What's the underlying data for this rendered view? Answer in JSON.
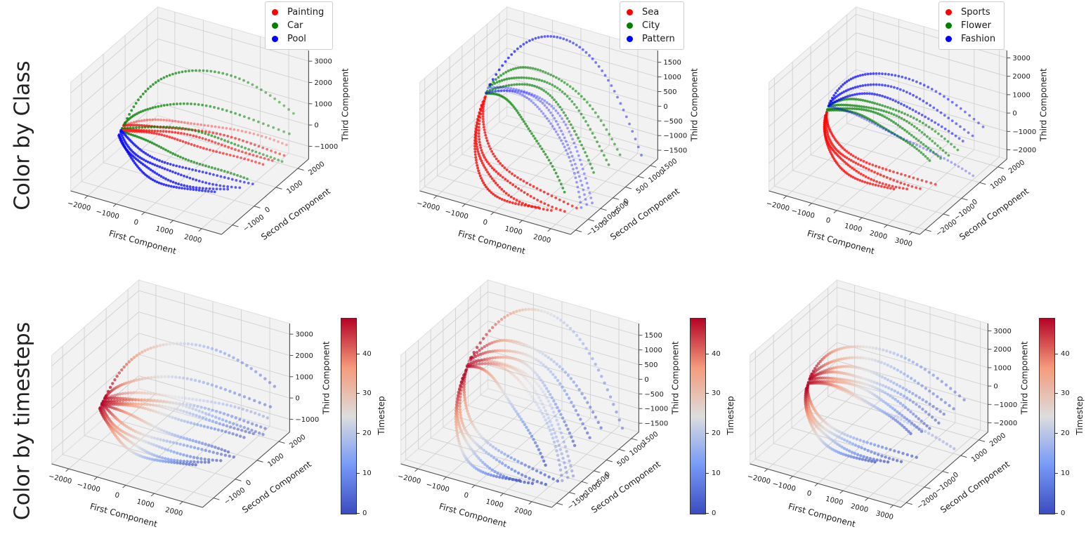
{
  "figure": {
    "rows": [
      {
        "label": "Color by Class"
      },
      {
        "label": "Color by timesteps"
      }
    ],
    "axis_labels": {
      "x": "First Component",
      "y": "Second Component",
      "z": "Third Component"
    }
  },
  "colors": {
    "red": "#ff0000",
    "green": "#008000",
    "blue": "#0000ff",
    "pane": "#f2f2f2",
    "grid": "#cdcdcd",
    "pane_edge": "#dedede",
    "spine": "#4d4d4d",
    "text": "#1a1a1a",
    "coolwarm_stops": [
      "#3b4cc0",
      "#779af7",
      "#dddddd",
      "#f49a7b",
      "#b40426"
    ]
  },
  "chart_data": {
    "type": "scatter",
    "projection": "3d",
    "view": {
      "elev": 30,
      "azim": -60
    },
    "grid": true,
    "points_per_trajectory": 50,
    "row_modes": [
      "class",
      "timestep"
    ],
    "timestep_colorbar": {
      "label": "Timestep",
      "min": 0,
      "max": 49,
      "ticks": [
        0,
        10,
        20,
        30,
        40
      ],
      "colormap": "coolwarm"
    },
    "columns": [
      {
        "classes": [
          {
            "name": "Painting",
            "color": "#ff0000"
          },
          {
            "name": "Car",
            "color": "#008000"
          },
          {
            "name": "Pool",
            "color": "#0000ff"
          }
        ],
        "xlim": [
          -2600,
          2700
        ],
        "ylim": [
          -1500,
          2500
        ],
        "zlim": [
          -1600,
          3500
        ],
        "xticks": [
          -2000,
          -1000,
          0,
          1000,
          2000
        ],
        "yticks": [
          -1000,
          0,
          1000,
          2000
        ],
        "zticks": [
          -1000,
          0,
          1000,
          2000,
          3000
        ],
        "trajectories": [
          {
            "class": 0,
            "start": [
              -2000,
              150,
              250
            ],
            "peak": [
              100,
              600,
              800
            ],
            "end": [
              2600,
              1600,
              -200
            ],
            "alpha": 0.6
          },
          {
            "class": 0,
            "start": [
              -2000,
              120,
              200
            ],
            "peak": [
              100,
              450,
              600
            ],
            "end": [
              2700,
              1400,
              -400
            ]
          },
          {
            "class": 0,
            "start": [
              -2000,
              100,
              150
            ],
            "peak": [
              150,
              300,
              450
            ],
            "end": [
              2500,
              1100,
              -500
            ]
          },
          {
            "class": 0,
            "start": [
              -2000,
              80,
              100
            ],
            "peak": [
              0,
              200,
              250
            ],
            "end": [
              2300,
              900,
              -650
            ]
          },
          {
            "class": 1,
            "start": [
              -2000,
              200,
              300
            ],
            "peak": [
              -200,
              900,
              2900
            ],
            "end": [
              2400,
              2200,
              700
            ]
          },
          {
            "class": 1,
            "start": [
              -2000,
              150,
              250
            ],
            "peak": [
              -300,
              600,
              1500
            ],
            "end": [
              2500,
              1900,
              100
            ]
          },
          {
            "class": 1,
            "start": [
              -2000,
              100,
              200
            ],
            "peak": [
              300,
              500,
              500
            ],
            "end": [
              2600,
              1400,
              -800
            ]
          },
          {
            "class": 1,
            "start": [
              -2000,
              50,
              100
            ],
            "peak": [
              -100,
              0,
              -200
            ],
            "end": [
              1900,
              700,
              -1300
            ]
          },
          {
            "class": 2,
            "start": [
              -2000,
              0,
              100
            ],
            "peak": [
              -300,
              -100,
              -600
            ],
            "end": [
              2200,
              600,
              -1250
            ]
          },
          {
            "class": 2,
            "start": [
              -2000,
              0,
              50
            ],
            "peak": [
              -400,
              -250,
              -800
            ],
            "end": [
              1900,
              400,
              -1350
            ]
          },
          {
            "class": 2,
            "start": [
              -2000,
              -50,
              0
            ],
            "peak": [
              -500,
              -350,
              -1000
            ],
            "end": [
              1600,
              200,
              -1450
            ]
          },
          {
            "class": 2,
            "start": [
              -2000,
              -50,
              0
            ],
            "peak": [
              -600,
              -450,
              -1100
            ],
            "end": [
              1300,
              0,
              -1500
            ]
          }
        ]
      },
      {
        "classes": [
          {
            "name": "Sea",
            "color": "#ff0000"
          },
          {
            "name": "City",
            "color": "#008000"
          },
          {
            "name": "Pattern",
            "color": "#0000ff"
          }
        ],
        "xlim": [
          -2600,
          2700
        ],
        "ylim": [
          -1700,
          1800
        ],
        "zlim": [
          -1800,
          1900
        ],
        "xticks": [
          -2000,
          -1000,
          0,
          1000,
          2000
        ],
        "yticks": [
          -1500,
          -1000,
          -500,
          0,
          500,
          1000,
          1500
        ],
        "zticks": [
          -1500,
          -1000,
          -500,
          0,
          500,
          1000,
          1500
        ],
        "trajectories": [
          {
            "class": 0,
            "start": [
              -2000,
              250,
              150
            ],
            "peak": [
              -900,
              -500,
              -1100
            ],
            "end": [
              2200,
              -900,
              -1650
            ]
          },
          {
            "class": 0,
            "start": [
              -2000,
              200,
              100
            ],
            "peak": [
              -1000,
              -650,
              -1300
            ],
            "end": [
              1900,
              -1000,
              -1700
            ]
          },
          {
            "class": 0,
            "start": [
              -2000,
              150,
              50
            ],
            "peak": [
              -1100,
              -750,
              -1450
            ],
            "end": [
              1500,
              -1100,
              -1750
            ]
          },
          {
            "class": 0,
            "start": [
              -2000,
              120,
              0
            ],
            "peak": [
              -1200,
              -850,
              -1550
            ],
            "end": [
              1100,
              -1200,
              -1750
            ]
          },
          {
            "class": 1,
            "start": [
              -2000,
              450,
              400
            ],
            "peak": [
              -200,
              900,
              950
            ],
            "end": [
              2600,
              400,
              -650
            ]
          },
          {
            "class": 1,
            "start": [
              -2000,
              400,
              350
            ],
            "peak": [
              -100,
              700,
              750
            ],
            "end": [
              2400,
              200,
              -850
            ]
          },
          {
            "class": 1,
            "start": [
              -2000,
              350,
              300
            ],
            "peak": [
              0,
              500,
              550
            ],
            "end": [
              2100,
              -100,
              -1050
            ]
          },
          {
            "class": 1,
            "start": [
              -2000,
              300,
              250
            ],
            "peak": [
              -700,
              300,
              -300
            ],
            "end": [
              1500,
              -600,
              -1550
            ]
          },
          {
            "class": 2,
            "start": [
              -2000,
              400,
              400
            ],
            "peak": [
              -100,
              1300,
              1900
            ],
            "end": [
              2400,
              1500,
              -1500
            ]
          },
          {
            "class": 2,
            "start": [
              -2000,
              350,
              350
            ],
            "peak": [
              300,
              300,
              350
            ],
            "end": [
              2600,
              -700,
              -1450
            ],
            "alpha": 0.55
          },
          {
            "class": 2,
            "start": [
              -2000,
              300,
              300
            ],
            "peak": [
              250,
              250,
              250
            ],
            "end": [
              2500,
              -850,
              -1500
            ],
            "alpha": 0.55
          },
          {
            "class": 2,
            "start": [
              -2000,
              300,
              250
            ],
            "peak": [
              200,
              200,
              150
            ],
            "end": [
              2400,
              -950,
              -1550
            ],
            "alpha": 0.55
          }
        ]
      },
      {
        "classes": [
          {
            "name": "Sports",
            "color": "#ff0000"
          },
          {
            "name": "Flower",
            "color": "#008000"
          },
          {
            "name": "Fashion",
            "color": "#0000ff"
          }
        ],
        "xlim": [
          -2700,
          3300
        ],
        "ylim": [
          -2300,
          2500
        ],
        "zlim": [
          -2500,
          3400
        ],
        "xticks": [
          -2000,
          -1000,
          0,
          1000,
          2000,
          3000
        ],
        "yticks": [
          -2000,
          -1000,
          0,
          1000,
          2000
        ],
        "zticks": [
          -2000,
          -1000,
          0,
          1000,
          2000,
          3000
        ],
        "trajectories": [
          {
            "class": 0,
            "start": [
              -2100,
              50,
              0
            ],
            "peak": [
              -800,
              -450,
              -1250
            ],
            "end": [
              2400,
              -200,
              -1950
            ]
          },
          {
            "class": 0,
            "start": [
              -2100,
              30,
              -50
            ],
            "peak": [
              -900,
              -550,
              -1450
            ],
            "end": [
              2000,
              -450,
              -2050
            ]
          },
          {
            "class": 0,
            "start": [
              -2100,
              0,
              -100
            ],
            "peak": [
              -1000,
              -650,
              -1600
            ],
            "end": [
              1600,
              -650,
              -2100
            ]
          },
          {
            "class": 0,
            "start": [
              -2100,
              0,
              -100
            ],
            "peak": [
              -1100,
              -750,
              -1700
            ],
            "end": [
              1200,
              -850,
              -2150
            ]
          },
          {
            "class": 1,
            "start": [
              -2100,
              200,
              250
            ],
            "peak": [
              -100,
              450,
              850
            ],
            "end": [
              2500,
              900,
              -950
            ]
          },
          {
            "class": 1,
            "start": [
              -2100,
              150,
              200
            ],
            "peak": [
              0,
              350,
              600
            ],
            "end": [
              2300,
              700,
              -1100
            ]
          },
          {
            "class": 1,
            "start": [
              -2100,
              120,
              150
            ],
            "peak": [
              0,
              250,
              400
            ],
            "end": [
              2100,
              500,
              -1250
            ]
          },
          {
            "class": 1,
            "start": [
              -2100,
              100,
              100
            ],
            "peak": [
              -150,
              150,
              100
            ],
            "end": [
              1800,
              300,
              -1350
            ]
          },
          {
            "class": 2,
            "start": [
              -2100,
              250,
              400
            ],
            "peak": [
              -300,
              900,
              2100
            ],
            "end": [
              2800,
              1900,
              -400
            ]
          },
          {
            "class": 2,
            "start": [
              -2100,
              200,
              350
            ],
            "peak": [
              -200,
              700,
              1600
            ],
            "end": [
              2600,
              1600,
              -700
            ]
          },
          {
            "class": 2,
            "start": [
              -2100,
              200,
              300
            ],
            "peak": [
              -100,
              550,
              1150
            ],
            "end": [
              2400,
              1300,
              -900
            ]
          },
          {
            "class": 2,
            "start": [
              -2100,
              150,
              250
            ],
            "peak": [
              300,
              250,
              -250
            ],
            "end": [
              3100,
              900,
              -2150
            ],
            "alpha": 0.55
          }
        ]
      }
    ]
  }
}
